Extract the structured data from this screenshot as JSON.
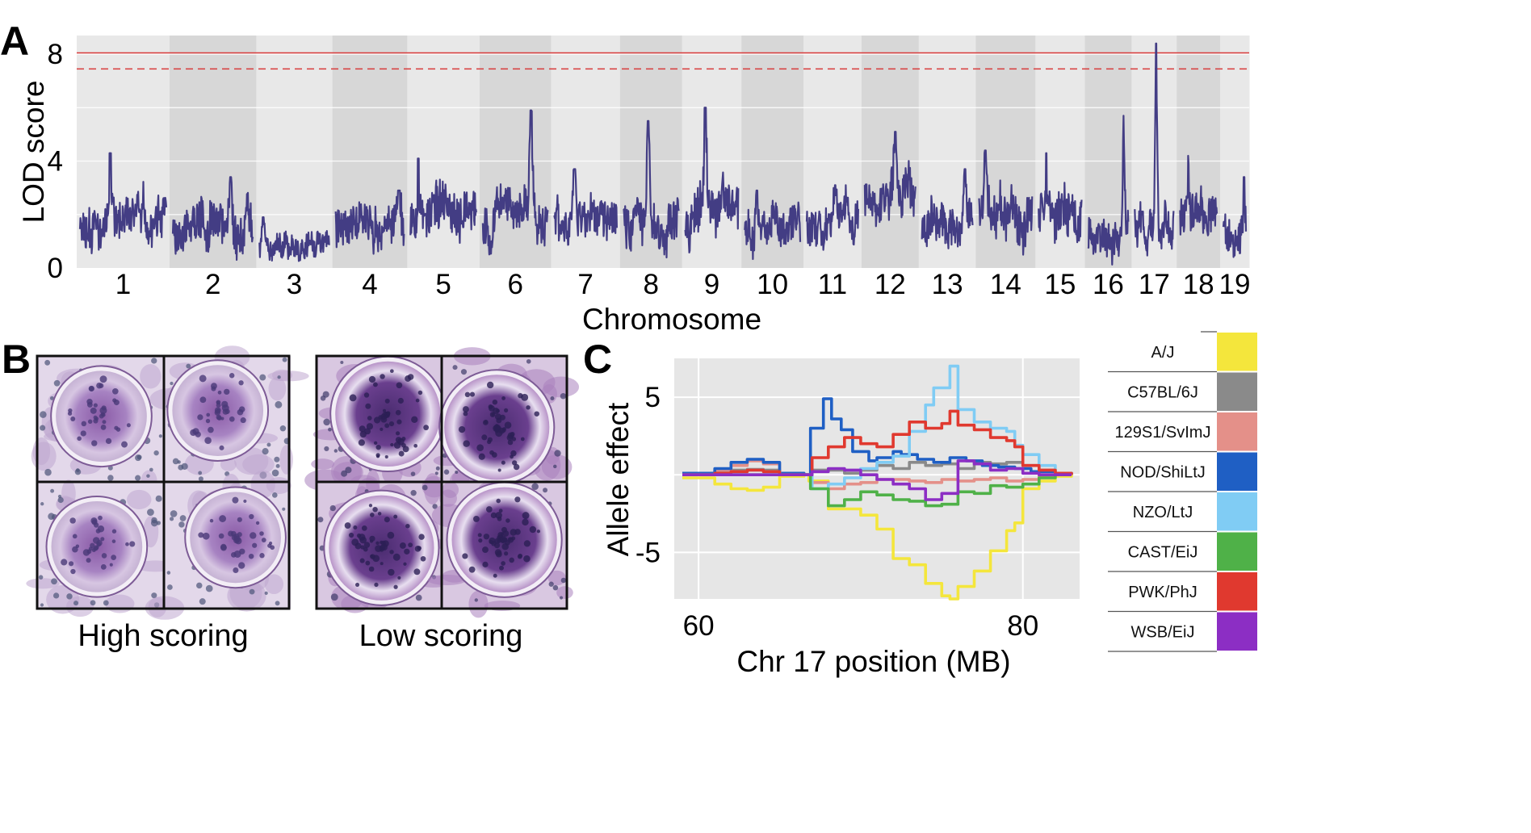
{
  "panel_labels": {
    "a": "A",
    "b": "B",
    "c": "C"
  },
  "colors": {
    "lod_line": "#433d84",
    "threshold": "#d83b3b",
    "panel_bg_light": "#e8e8e8",
    "panel_bg_dark": "#d7d7d7",
    "plot_bg": "#e6e6e6"
  },
  "chart_data": [
    {
      "type": "line",
      "panel": "A",
      "title": "",
      "xlabel": "Chromosome",
      "ylabel": "LOD score",
      "ylim": [
        0,
        8.7
      ],
      "yticks": [
        0,
        4,
        8
      ],
      "grid": true,
      "thresholds": [
        {
          "name": "solid",
          "value": 8.05,
          "style": "solid"
        },
        {
          "name": "dashed",
          "value": 7.45,
          "style": "dashed"
        }
      ],
      "categories": [
        "1",
        "2",
        "3",
        "4",
        "5",
        "6",
        "7",
        "8",
        "9",
        "10",
        "11",
        "12",
        "13",
        "14",
        "15",
        "16",
        "17",
        "18",
        "19"
      ],
      "chromosomes": [
        {
          "label": "1",
          "length": 195,
          "base": 1.9,
          "amp": 1.0,
          "peak": 4.3,
          "peak_at": 0.35,
          "seed": 11
        },
        {
          "label": "2",
          "length": 182,
          "base": 1.6,
          "amp": 1.0,
          "peak": 3.4,
          "peak_at": 0.72,
          "seed": 23
        },
        {
          "label": "3",
          "length": 160,
          "base": 0.8,
          "amp": 0.6,
          "peak": 1.9,
          "peak_at": 0.05,
          "seed": 37
        },
        {
          "label": "4",
          "length": 157,
          "base": 1.6,
          "amp": 0.9,
          "peak": 2.9,
          "peak_at": 0.92,
          "seed": 41
        },
        {
          "label": "5",
          "length": 152,
          "base": 2.0,
          "amp": 1.1,
          "peak": 4.1,
          "peak_at": 0.12,
          "seed": 53
        },
        {
          "label": "6",
          "length": 150,
          "base": 2.0,
          "amp": 1.0,
          "peak": 5.9,
          "peak_at": 0.74,
          "seed": 67
        },
        {
          "label": "7",
          "length": 145,
          "base": 1.8,
          "amp": 0.9,
          "peak": 3.7,
          "peak_at": 0.32,
          "seed": 71
        },
        {
          "label": "8",
          "length": 130,
          "base": 1.9,
          "amp": 1.0,
          "peak": 5.5,
          "peak_at": 0.45,
          "seed": 83
        },
        {
          "label": "9",
          "length": 125,
          "base": 2.2,
          "amp": 1.1,
          "peak": 6.0,
          "peak_at": 0.38,
          "seed": 97
        },
        {
          "label": "10",
          "length": 130,
          "base": 1.6,
          "amp": 0.9,
          "peak": 2.9,
          "peak_at": 0.22,
          "seed": 101
        },
        {
          "label": "11",
          "length": 122,
          "base": 1.8,
          "amp": 0.9,
          "peak": 3.1,
          "peak_at": 0.55,
          "seed": 113
        },
        {
          "label": "12",
          "length": 120,
          "base": 2.8,
          "amp": 1.0,
          "peak": 5.1,
          "peak_at": 0.6,
          "seed": 127
        },
        {
          "label": "13",
          "length": 120,
          "base": 1.6,
          "amp": 0.9,
          "peak": 3.7,
          "peak_at": 0.85,
          "seed": 131
        },
        {
          "label": "14",
          "length": 125,
          "base": 2.3,
          "amp": 1.0,
          "peak": 4.4,
          "peak_at": 0.12,
          "seed": 149
        },
        {
          "label": "15",
          "length": 104,
          "base": 2.3,
          "amp": 1.0,
          "peak": 4.3,
          "peak_at": 0.18,
          "seed": 157
        },
        {
          "label": "16",
          "length": 98,
          "base": 1.3,
          "amp": 0.8,
          "peak": 5.7,
          "peak_at": 0.88,
          "seed": 163
        },
        {
          "label": "17",
          "length": 95,
          "base": 1.7,
          "amp": 0.9,
          "peak": 8.4,
          "peak_at": 0.55,
          "seed": 173
        },
        {
          "label": "18",
          "length": 91,
          "base": 2.0,
          "amp": 0.9,
          "peak": 4.2,
          "peak_at": 0.22,
          "seed": 181
        },
        {
          "label": "19",
          "length": 61,
          "base": 1.5,
          "amp": 0.8,
          "peak": 3.4,
          "peak_at": 0.92,
          "seed": 191
        }
      ]
    },
    {
      "type": "line",
      "panel": "C",
      "title": "",
      "xlabel": "Chr 17 position (MB)",
      "ylabel": "Allele effect",
      "xlim": [
        58.5,
        83.5
      ],
      "ylim": [
        -8,
        7.5
      ],
      "xticks": [
        60,
        80
      ],
      "yticks": [
        -5,
        5
      ],
      "grid": true,
      "legend": "right",
      "series": [
        {
          "name": "A/J",
          "color": "#f4e63c",
          "x": [
            59,
            61,
            62,
            63,
            64,
            65,
            66.5,
            66.8,
            68,
            70,
            71,
            72,
            73,
            74,
            75,
            75.5,
            76,
            77,
            78,
            79,
            79.5,
            80,
            81,
            82,
            83
          ],
          "y": [
            -0.2,
            -0.6,
            -0.9,
            -1.0,
            -0.8,
            -0.1,
            0,
            -0.4,
            -2.2,
            -2.6,
            -3.5,
            -5.4,
            -5.8,
            -7.0,
            -7.8,
            -8.0,
            -7.2,
            -6.2,
            -4.9,
            -3.6,
            -3.1,
            -0.9,
            -0.4,
            -0.1,
            0
          ]
        },
        {
          "name": "C57BL/6J",
          "color": "#8a8a8a",
          "x": [
            59,
            61,
            62,
            63,
            64,
            65,
            66.5,
            67,
            69,
            70,
            71,
            72,
            73,
            74,
            75,
            76,
            77,
            78,
            79,
            80,
            81,
            82,
            83
          ],
          "y": [
            0.1,
            0.2,
            0.3,
            0.35,
            0.3,
            0.1,
            0,
            0.3,
            0.1,
            0.3,
            0.6,
            0.4,
            0.8,
            0.6,
            0.7,
            0.4,
            0.8,
            0.7,
            0.8,
            0.6,
            0.3,
            0.1,
            0
          ]
        },
        {
          "name": "129S1/SvImJ",
          "color": "#e49089",
          "x": [
            59,
            61,
            62,
            63,
            64,
            65,
            66.5,
            67,
            68,
            69,
            70,
            71,
            72,
            73,
            74,
            75,
            76,
            77,
            78,
            79,
            80,
            81,
            82,
            83
          ],
          "y": [
            0.1,
            0.3,
            0.6,
            0.9,
            0.7,
            0.1,
            0,
            -0.5,
            -0.9,
            -0.6,
            -0.5,
            -0.3,
            -0.3,
            -0.4,
            -0.5,
            -0.3,
            -0.4,
            -0.3,
            -0.2,
            -0.4,
            -0.3,
            -0.1,
            0,
            0
          ]
        },
        {
          "name": "NOD/ShiLtJ",
          "color": "#1f5fc4",
          "x": [
            59,
            61,
            62,
            63,
            64,
            65,
            66.5,
            66.9,
            67.7,
            68.2,
            68.8,
            69.5,
            70.5,
            71,
            72,
            72.5,
            73.5,
            74.5,
            75.5,
            76.5,
            77.5,
            78.5,
            79.5,
            80.5,
            82,
            83
          ],
          "y": [
            0.1,
            0.4,
            0.8,
            1.0,
            0.8,
            0.1,
            0,
            3.0,
            4.9,
            3.6,
            2.9,
            1.5,
            0.9,
            1.1,
            1.5,
            1.3,
            1.0,
            0.8,
            1.1,
            0.9,
            0.6,
            0.5,
            0.4,
            0.2,
            0.1,
            0
          ]
        },
        {
          "name": "NZO/LtJ",
          "color": "#80ccf4",
          "x": [
            59,
            61,
            62,
            63,
            64,
            65,
            66.5,
            67,
            68,
            69,
            70,
            71,
            72,
            73,
            74,
            74.5,
            75.5,
            76,
            77,
            78,
            79,
            79.5,
            80,
            81,
            82,
            83
          ],
          "y": [
            0,
            0.1,
            0.2,
            0.3,
            0.2,
            0,
            0,
            -0.9,
            -0.6,
            -0.2,
            0.4,
            0.8,
            1.2,
            2.8,
            4.5,
            5.6,
            7.0,
            4.2,
            3.4,
            3.0,
            2.8,
            1.9,
            1.3,
            0.6,
            0.1,
            0
          ]
        },
        {
          "name": "CAST/EiJ",
          "color": "#4fb148",
          "x": [
            59,
            61,
            62,
            63,
            64,
            65,
            66.5,
            66.9,
            68,
            69,
            70,
            71,
            72,
            73,
            74,
            75,
            76,
            77,
            78,
            79,
            80,
            81,
            82,
            83
          ],
          "y": [
            0,
            0,
            0,
            0,
            0,
            0,
            0,
            -0.9,
            -2.0,
            -1.6,
            -1.1,
            -1.3,
            -1.6,
            -1.7,
            -2.0,
            -1.9,
            -1.1,
            -1.2,
            -0.7,
            -0.8,
            -0.6,
            -0.2,
            0,
            0
          ]
        },
        {
          "name": "PWK/PhJ",
          "color": "#e0392f",
          "x": [
            59,
            61,
            62,
            63,
            64,
            65,
            66.5,
            67,
            68,
            69,
            70,
            71,
            72,
            73,
            74,
            75,
            75.5,
            76,
            77,
            78,
            79,
            79.5,
            80,
            81,
            82,
            83
          ],
          "y": [
            0,
            0.1,
            0.2,
            0.3,
            0.2,
            0,
            0,
            1.1,
            1.8,
            2.4,
            2.0,
            1.8,
            2.6,
            3.4,
            3.0,
            3.3,
            4.1,
            3.2,
            2.9,
            2.4,
            2.2,
            1.8,
            0.6,
            0.3,
            0.1,
            0
          ]
        },
        {
          "name": "WSB/EiJ",
          "color": "#8c2ec4",
          "x": [
            59,
            61,
            62,
            63,
            64,
            65,
            66.5,
            67,
            68,
            69,
            70,
            71,
            72,
            73,
            74,
            75,
            76,
            77,
            78,
            79,
            80,
            81,
            82,
            83
          ],
          "y": [
            0,
            0,
            0,
            0,
            0,
            0,
            0,
            0.2,
            0.4,
            0.3,
            0.0,
            -0.3,
            -0.6,
            -0.9,
            -1.6,
            -1.2,
            0.9,
            0.7,
            0.3,
            0.4,
            0.1,
            0,
            0,
            0
          ]
        }
      ]
    }
  ],
  "panel_b": {
    "high_label": "High scoring",
    "low_label": "Low scoring"
  }
}
